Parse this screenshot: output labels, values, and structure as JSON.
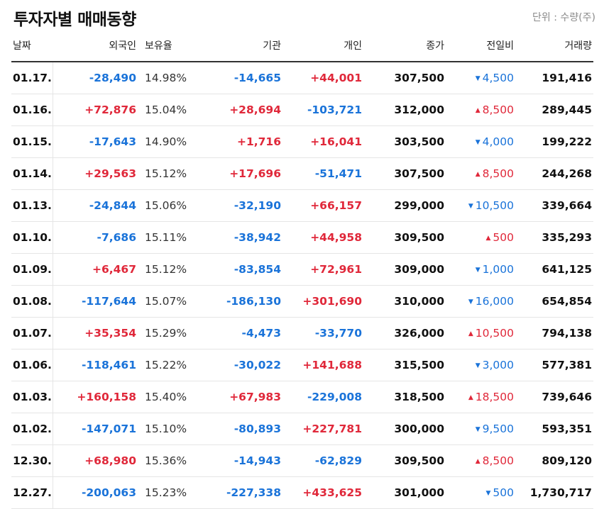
{
  "header": {
    "title": "투자자별 매매동향",
    "unit": "단위 : 수량(주)"
  },
  "columns": {
    "date": "날짜",
    "foreign": "외국인",
    "ratio": "보유율",
    "institution": "기관",
    "individual": "개인",
    "close": "종가",
    "change": "전일비",
    "volume": "거래량"
  },
  "colors": {
    "positive": "#e0283a",
    "negative": "#1a73d9"
  },
  "rows": [
    {
      "date": "01.17.",
      "foreign": "-28,490",
      "ratio": "14.98%",
      "institution": "-14,665",
      "individual": "+44,001",
      "close": "307,500",
      "change_arrow": "▼",
      "change": "4,500",
      "volume": "191,416"
    },
    {
      "date": "01.16.",
      "foreign": "+72,876",
      "ratio": "15.04%",
      "institution": "+28,694",
      "individual": "-103,721",
      "close": "312,000",
      "change_arrow": "▲",
      "change": "8,500",
      "volume": "289,445"
    },
    {
      "date": "01.15.",
      "foreign": "-17,643",
      "ratio": "14.90%",
      "institution": "+1,716",
      "individual": "+16,041",
      "close": "303,500",
      "change_arrow": "▼",
      "change": "4,000",
      "volume": "199,222"
    },
    {
      "date": "01.14.",
      "foreign": "+29,563",
      "ratio": "15.12%",
      "institution": "+17,696",
      "individual": "-51,471",
      "close": "307,500",
      "change_arrow": "▲",
      "change": "8,500",
      "volume": "244,268"
    },
    {
      "date": "01.13.",
      "foreign": "-24,844",
      "ratio": "15.06%",
      "institution": "-32,190",
      "individual": "+66,157",
      "close": "299,000",
      "change_arrow": "▼",
      "change": "10,500",
      "volume": "339,664"
    },
    {
      "date": "01.10.",
      "foreign": "-7,686",
      "ratio": "15.11%",
      "institution": "-38,942",
      "individual": "+44,958",
      "close": "309,500",
      "change_arrow": "▲",
      "change": "500",
      "volume": "335,293"
    },
    {
      "date": "01.09.",
      "foreign": "+6,467",
      "ratio": "15.12%",
      "institution": "-83,854",
      "individual": "+72,961",
      "close": "309,000",
      "change_arrow": "▼",
      "change": "1,000",
      "volume": "641,125"
    },
    {
      "date": "01.08.",
      "foreign": "-117,644",
      "ratio": "15.07%",
      "institution": "-186,130",
      "individual": "+301,690",
      "close": "310,000",
      "change_arrow": "▼",
      "change": "16,000",
      "volume": "654,854"
    },
    {
      "date": "01.07.",
      "foreign": "+35,354",
      "ratio": "15.29%",
      "institution": "-4,473",
      "individual": "-33,770",
      "close": "326,000",
      "change_arrow": "▲",
      "change": "10,500",
      "volume": "794,138"
    },
    {
      "date": "01.06.",
      "foreign": "-118,461",
      "ratio": "15.22%",
      "institution": "-30,022",
      "individual": "+141,688",
      "close": "315,500",
      "change_arrow": "▼",
      "change": "3,000",
      "volume": "577,381"
    },
    {
      "date": "01.03.",
      "foreign": "+160,158",
      "ratio": "15.40%",
      "institution": "+67,983",
      "individual": "-229,008",
      "close": "318,500",
      "change_arrow": "▲",
      "change": "18,500",
      "volume": "739,646"
    },
    {
      "date": "01.02.",
      "foreign": "-147,071",
      "ratio": "15.10%",
      "institution": "-80,893",
      "individual": "+227,781",
      "close": "300,000",
      "change_arrow": "▼",
      "change": "9,500",
      "volume": "593,351"
    },
    {
      "date": "12.30.",
      "foreign": "+68,980",
      "ratio": "15.36%",
      "institution": "-14,943",
      "individual": "-62,829",
      "close": "309,500",
      "change_arrow": "▲",
      "change": "8,500",
      "volume": "809,120"
    },
    {
      "date": "12.27.",
      "foreign": "-200,063",
      "ratio": "15.23%",
      "institution": "-227,338",
      "individual": "+433,625",
      "close": "301,000",
      "change_arrow": "▼",
      "change": "500",
      "volume": "1,730,717"
    }
  ]
}
